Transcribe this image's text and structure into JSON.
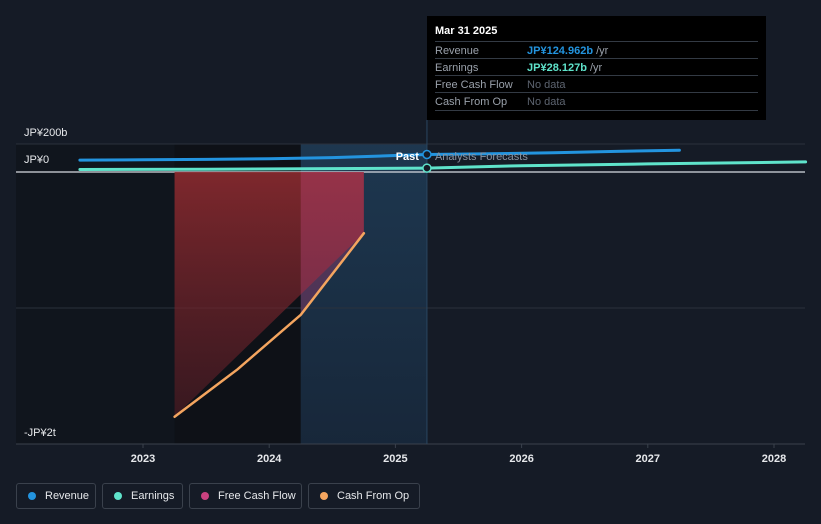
{
  "colors": {
    "revenue": "#2394df",
    "earnings": "#5fe3cb",
    "free_cash_flow": "#c9417f",
    "cash_from_op": "#f4a55f"
  },
  "tooltip": {
    "date": "Mar 31 2025",
    "rows": [
      {
        "label": "Revenue",
        "value": "JP¥124.962b",
        "unit": "/yr"
      },
      {
        "label": "Earnings",
        "value": "JP¥28.127b",
        "unit": "/yr"
      },
      {
        "label": "Free Cash Flow",
        "value": "No data"
      },
      {
        "label": "Cash From Op",
        "value": "No data"
      }
    ]
  },
  "legend": [
    {
      "label": "Revenue",
      "color": "#2394df"
    },
    {
      "label": "Earnings",
      "color": "#5fe3cb"
    },
    {
      "label": "Free Cash Flow",
      "color": "#c9417f"
    },
    {
      "label": "Cash From Op",
      "color": "#f4a55f"
    }
  ],
  "chart_data": {
    "type": "line",
    "title": "",
    "divider_labels": {
      "past": "Past",
      "forecast": "Analysts Forecasts"
    },
    "divider_x": 2025.25,
    "y_tick_labels": [
      {
        "value": 200,
        "label": "JP¥200b"
      },
      {
        "value": 0,
        "label": "JP¥0"
      },
      {
        "value": -2000,
        "label": "-JP¥2t"
      }
    ],
    "ylim": [
      -2000,
      200
    ],
    "xlim": [
      2022.25,
      2028.25
    ],
    "x_ticks": [
      2023,
      2024,
      2025,
      2026,
      2027,
      2028
    ],
    "x_tick_labels": [
      "2023",
      "2024",
      "2025",
      "2026",
      "2027",
      "2028"
    ],
    "series": [
      {
        "name": "Revenue",
        "key": "revenue",
        "x": [
          2022.5,
          2023.0,
          2023.5,
          2024.0,
          2024.5,
          2025.0,
          2025.25,
          2025.75,
          2026.25,
          2026.75,
          2027.25
        ],
        "y": [
          85,
          87,
          90,
          95,
          103,
          118,
          125,
          130,
          138,
          147,
          156
        ]
      },
      {
        "name": "Earnings",
        "key": "earnings",
        "x": [
          2022.5,
          2023.5,
          2024.5,
          2025.25,
          2026.0,
          2027.0,
          2028.25
        ],
        "y": [
          18,
          20,
          24,
          28,
          45,
          58,
          72
        ]
      },
      {
        "name": "Cash From Op",
        "key": "cash_from_op",
        "x": [
          2023.25,
          2023.75,
          2024.25,
          2024.75
        ],
        "y": [
          -1800,
          -1450,
          -1050,
          -450
        ]
      }
    ],
    "free_cash_flow_band": {
      "x_start": 2023.25,
      "x_end": 2024.75,
      "y_top": 0,
      "y_bottom": [
        -1800,
        -450
      ]
    }
  }
}
